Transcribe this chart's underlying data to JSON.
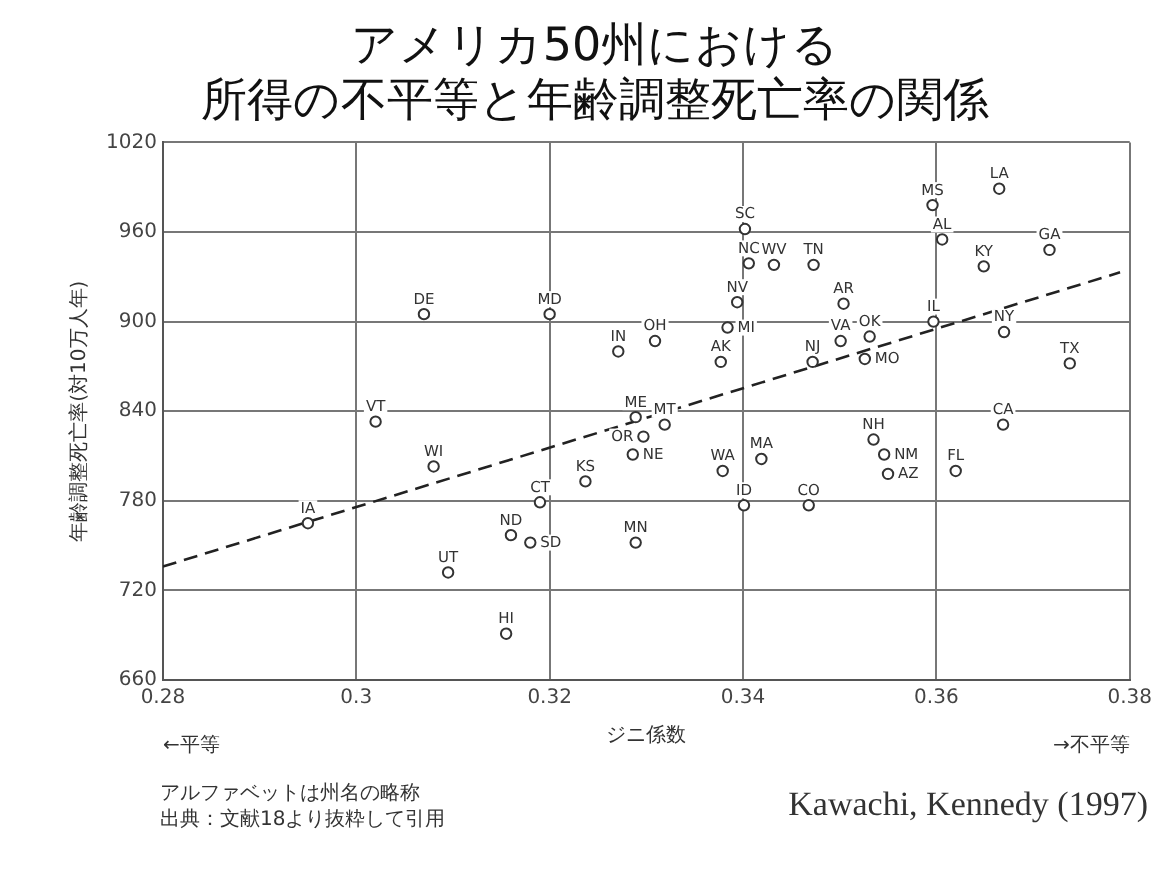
{
  "chart_data": {
    "type": "scatter",
    "title": [
      "アメリカ50州における",
      "所得の不平等と年齢調整死亡率の関係"
    ],
    "xlabel": "ジニ係数",
    "ylabel": "年齢調整死亡率(対10万人年)",
    "xlim": [
      0.28,
      0.38
    ],
    "xticks": [
      0.28,
      0.3,
      0.32,
      0.34,
      0.36,
      0.38
    ],
    "ylim": [
      660,
      1020
    ],
    "yticks": [
      660,
      720,
      780,
      840,
      900,
      960,
      1020
    ],
    "grid": true,
    "marker": "circle",
    "legend": false,
    "series": [
      {
        "color": "#333333",
        "x": [
          0.307,
          0.302,
          0.308,
          0.295,
          0.3095,
          0.3155,
          0.316,
          0.318,
          0.319,
          0.32,
          0.3402,
          0.3406,
          0.3432,
          0.3473,
          0.3504,
          0.3596,
          0.3665,
          0.3606,
          0.3717,
          0.3649,
          0.3394,
          0.3384,
          0.3271,
          0.3309,
          0.3377,
          0.3472,
          0.3526,
          0.3501,
          0.3531,
          0.3597,
          0.3289,
          0.3319,
          0.3297,
          0.3286,
          0.3237,
          0.3379,
          0.3419,
          0.3401,
          0.3468,
          0.3289,
          0.3535,
          0.3546,
          0.355,
          0.362,
          0.3669,
          0.367,
          0.3738
        ],
        "values": [
          905,
          833,
          803,
          765,
          732,
          691,
          757,
          752,
          779,
          905,
          962,
          939,
          938,
          938,
          912,
          978,
          989,
          955,
          948,
          937,
          913,
          896,
          880,
          887,
          873,
          873,
          875,
          887,
          890,
          900,
          836,
          831,
          823,
          811,
          793,
          800,
          808,
          777,
          777,
          752,
          821,
          811,
          798,
          800,
          831,
          893,
          872
        ],
        "value_labels": [
          "DE",
          "VT",
          "WI",
          "IA",
          "UT",
          "HI",
          "ND",
          "SD",
          "CT",
          "MD",
          "SC",
          "NC",
          "WV",
          "TN",
          "AR",
          "MS",
          "LA",
          "AL",
          "GA",
          "KY",
          "NV",
          "MI",
          "IN",
          "OH",
          "AK",
          "NJ",
          "MO",
          "VA",
          "OK",
          "IL",
          "ME",
          "MT",
          "OR",
          "NE",
          "KS",
          "WA",
          "MA",
          "ID",
          "CO",
          "MN",
          "NH",
          "NM",
          "AZ",
          "FL",
          "CA",
          "NY",
          "TX"
        ]
      },
      {
        "type": "line",
        "color": "#222222",
        "line_style": "dashed",
        "marker": "none",
        "x": [
          0.28,
          0.379
        ],
        "values": [
          736,
          933
        ]
      }
    ],
    "annotations": [
      "←平等",
      "→不平等",
      "アルファベットは州名の略称",
      "出典：文献18より抜粋して引用",
      "Kawachi, Kennedy (1997)"
    ]
  }
}
